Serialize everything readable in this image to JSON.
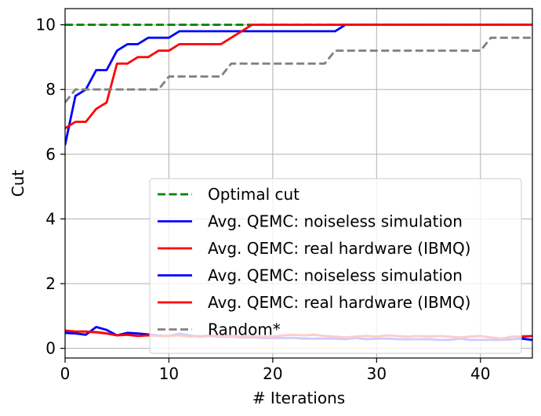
{
  "chart_data": {
    "type": "line",
    "title": "",
    "xlabel": "# Iterations",
    "ylabel": "Cut",
    "xlim": [
      0,
      45
    ],
    "ylim": [
      -0.3,
      10.5
    ],
    "xticks": [
      0,
      10,
      20,
      30,
      40
    ],
    "yticks": [
      0,
      2,
      4,
      6,
      8,
      10
    ],
    "grid": true,
    "legend_position": "lower-right",
    "series": [
      {
        "name": "Optimal cut",
        "color": "#008000",
        "dash": "dashed",
        "x": [
          0,
          45
        ],
        "y": [
          10,
          10
        ]
      },
      {
        "name": "Avg. QEMC: noiseless simulation",
        "color": "#0000ff",
        "dash": "solid",
        "x": [
          0,
          0.01,
          1,
          2,
          3,
          4,
          5,
          6,
          7,
          8,
          9,
          10,
          11,
          12,
          13,
          14,
          15,
          16,
          17,
          18,
          19,
          20,
          21,
          22,
          23,
          24,
          25,
          26,
          27,
          28,
          45
        ],
        "y": [
          6.3,
          6.3,
          7.8,
          8.0,
          8.6,
          8.6,
          9.2,
          9.4,
          9.4,
          9.6,
          9.6,
          9.6,
          9.8,
          9.8,
          9.8,
          9.8,
          9.8,
          9.8,
          9.8,
          9.8,
          9.8,
          9.8,
          9.8,
          9.8,
          9.8,
          9.8,
          9.8,
          9.8,
          10.0,
          10.0,
          10.0
        ]
      },
      {
        "name": "Avg. QEMC: real hardware (IBMQ)",
        "color": "#ff0000",
        "dash": "solid",
        "x": [
          0,
          1,
          2,
          3,
          4,
          5,
          6,
          7,
          8,
          9,
          10,
          11,
          12,
          13,
          14,
          15,
          16,
          17,
          18,
          19,
          20,
          45
        ],
        "y": [
          6.8,
          7.0,
          7.0,
          7.4,
          7.6,
          8.8,
          8.8,
          9.0,
          9.0,
          9.2,
          9.2,
          9.4,
          9.4,
          9.4,
          9.4,
          9.4,
          9.6,
          9.8,
          10.0,
          10.0,
          10.0,
          10.0
        ]
      },
      {
        "name": "Avg. QEMC: noiseless simulation",
        "color": "#0000ff",
        "dash": "solid",
        "x": [
          0,
          1,
          2,
          3,
          4,
          5,
          6,
          7,
          8,
          9,
          10,
          11,
          12,
          13,
          14,
          15,
          16,
          17,
          18,
          19,
          20,
          21,
          22,
          23,
          24,
          25,
          26,
          27,
          28,
          29,
          30,
          31,
          32,
          33,
          34,
          35,
          36,
          37,
          38,
          39,
          40,
          41,
          42,
          43,
          44,
          45
        ],
        "y": [
          0.48,
          0.46,
          0.42,
          0.66,
          0.57,
          0.4,
          0.48,
          0.46,
          0.43,
          0.4,
          0.38,
          0.45,
          0.4,
          0.36,
          0.38,
          0.36,
          0.36,
          0.34,
          0.34,
          0.32,
          0.32,
          0.32,
          0.32,
          0.3,
          0.3,
          0.3,
          0.3,
          0.28,
          0.32,
          0.28,
          0.3,
          0.3,
          0.28,
          0.28,
          0.28,
          0.28,
          0.26,
          0.26,
          0.3,
          0.26,
          0.26,
          0.26,
          0.26,
          0.28,
          0.3,
          0.26
        ]
      },
      {
        "name": "Avg. QEMC: real hardware (IBMQ)",
        "color": "#ff0000",
        "dash": "solid",
        "x": [
          0,
          1,
          2,
          3,
          4,
          5,
          6,
          7,
          8,
          9,
          10,
          11,
          12,
          13,
          14,
          15,
          16,
          17,
          18,
          19,
          20,
          21,
          22,
          23,
          24,
          25,
          26,
          27,
          28,
          29,
          30,
          31,
          32,
          33,
          34,
          35,
          36,
          37,
          38,
          39,
          40,
          41,
          42,
          43,
          44,
          45
        ],
        "y": [
          0.55,
          0.52,
          0.52,
          0.5,
          0.46,
          0.4,
          0.42,
          0.38,
          0.4,
          0.38,
          0.38,
          0.4,
          0.36,
          0.38,
          0.4,
          0.38,
          0.38,
          0.36,
          0.38,
          0.36,
          0.36,
          0.4,
          0.42,
          0.4,
          0.42,
          0.38,
          0.36,
          0.34,
          0.36,
          0.38,
          0.36,
          0.4,
          0.38,
          0.36,
          0.38,
          0.36,
          0.38,
          0.36,
          0.34,
          0.36,
          0.38,
          0.34,
          0.3,
          0.36,
          0.36,
          0.38
        ]
      },
      {
        "name": "Random*",
        "color": "#808080",
        "dash": "dashed",
        "x": [
          0,
          1,
          2,
          3,
          4,
          5,
          6,
          7,
          8,
          9,
          10,
          11,
          12,
          13,
          14,
          15,
          16,
          17,
          18,
          19,
          20,
          21,
          22,
          23,
          24,
          25,
          26,
          27,
          28,
          29,
          30,
          31,
          32,
          33,
          34,
          35,
          36,
          37,
          38,
          39,
          40,
          41,
          42,
          43,
          44,
          45
        ],
        "y": [
          7.6,
          8.0,
          8.0,
          8.0,
          8.0,
          8.0,
          8.0,
          8.0,
          8.0,
          8.0,
          8.4,
          8.4,
          8.4,
          8.4,
          8.4,
          8.4,
          8.8,
          8.8,
          8.8,
          8.8,
          8.8,
          8.8,
          8.8,
          8.8,
          8.8,
          8.8,
          9.2,
          9.2,
          9.2,
          9.2,
          9.2,
          9.2,
          9.2,
          9.2,
          9.2,
          9.2,
          9.2,
          9.2,
          9.2,
          9.2,
          9.2,
          9.6,
          9.6,
          9.6,
          9.6,
          9.6
        ]
      }
    ],
    "extra_lines": [
      {
        "color": "#ffc0cb",
        "dash": "solid",
        "x": [
          0,
          1,
          2,
          3,
          4,
          5,
          6,
          7,
          8,
          9,
          10,
          11,
          12,
          13,
          14,
          15,
          16,
          17,
          18,
          19,
          20,
          21,
          22,
          23,
          24,
          25,
          26,
          27,
          28,
          29,
          30,
          31,
          32,
          33,
          34,
          35,
          36,
          37,
          38,
          39,
          40,
          41,
          42,
          43,
          44,
          45
        ],
        "y": [
          0.5,
          0.48,
          0.5,
          0.46,
          0.44,
          0.42,
          0.44,
          0.4,
          0.42,
          0.4,
          0.4,
          0.42,
          0.38,
          0.36,
          0.4,
          0.4,
          0.42,
          0.38,
          0.38,
          0.36,
          0.32,
          0.4,
          0.42,
          0.42,
          0.44,
          0.38,
          0.32,
          0.34,
          0.38,
          0.4,
          0.36,
          0.38,
          0.36,
          0.34,
          0.38,
          0.4,
          0.38,
          0.36,
          0.32,
          0.36,
          0.38,
          0.3,
          0.28,
          0.36,
          0.4,
          0.38
        ]
      },
      {
        "color": "#c8c8ff",
        "dash": "solid",
        "x": [
          0,
          1,
          2,
          3,
          4,
          5,
          6,
          7,
          8,
          9,
          10,
          11,
          12,
          13,
          14,
          15,
          16,
          17,
          18,
          19,
          20,
          21,
          22,
          23,
          24,
          25,
          26,
          27,
          28,
          29,
          30,
          31,
          32,
          33,
          34,
          35,
          36,
          37,
          38,
          39,
          40,
          41,
          42,
          43,
          44,
          45
        ],
        "y": [
          0.46,
          0.44,
          0.44,
          0.52,
          0.48,
          0.42,
          0.44,
          0.42,
          0.4,
          0.38,
          0.36,
          0.4,
          0.38,
          0.34,
          0.36,
          0.34,
          0.36,
          0.32,
          0.34,
          0.32,
          0.3,
          0.3,
          0.34,
          0.32,
          0.3,
          0.3,
          0.28,
          0.28,
          0.3,
          0.3,
          0.28,
          0.32,
          0.3,
          0.26,
          0.28,
          0.3,
          0.26,
          0.28,
          0.3,
          0.24,
          0.26,
          0.28,
          0.26,
          0.26,
          0.28,
          0.26
        ]
      }
    ]
  }
}
